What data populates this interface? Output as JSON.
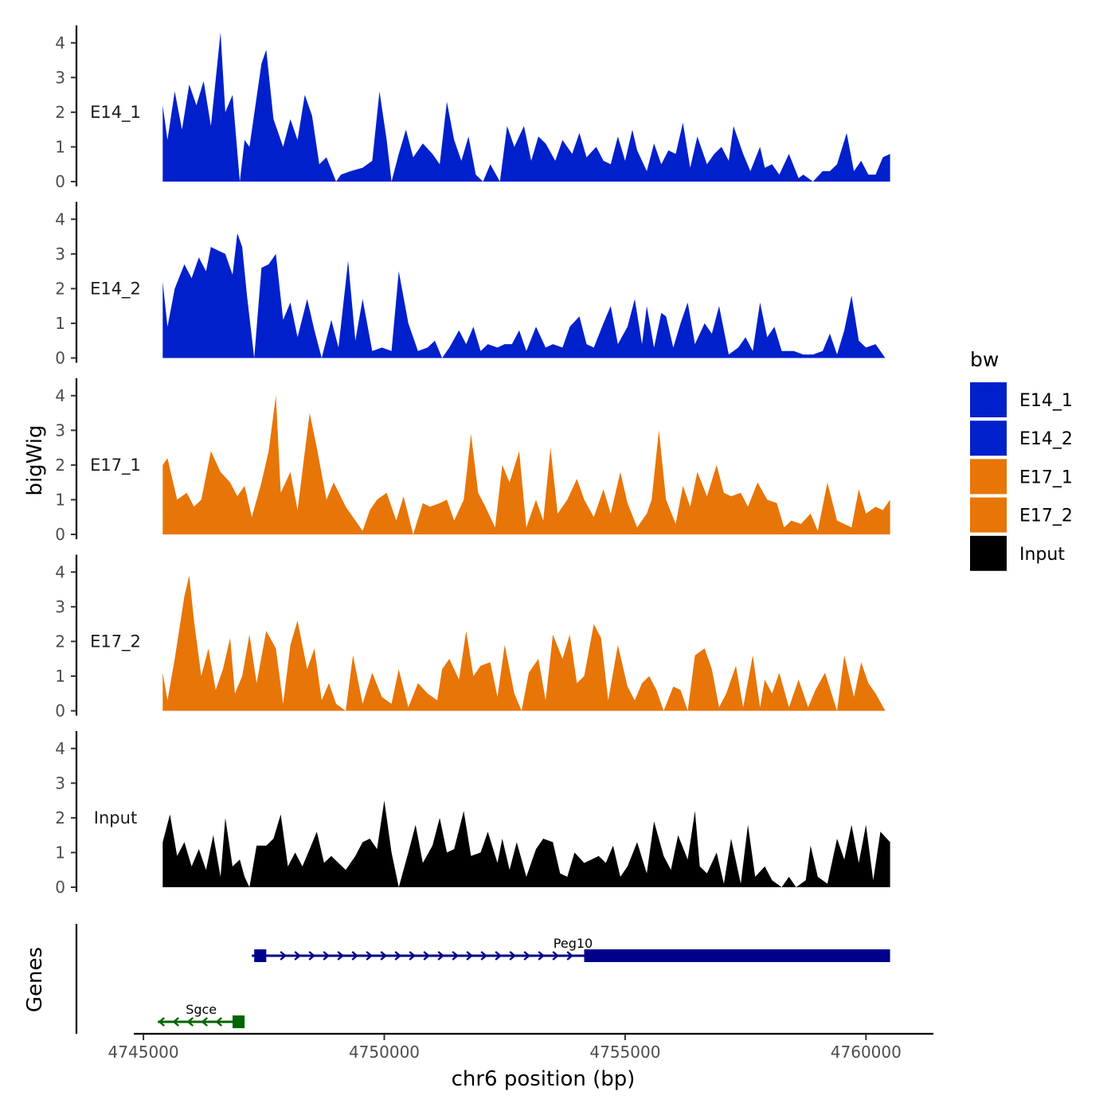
{
  "chart_data": {
    "type": "area",
    "chromosome": "chr6",
    "xlabel": "chr6 position (bp)",
    "ylabel_tracks": "bigWig",
    "ylabel_genes": "Genes",
    "xlim": [
      4744800,
      4761400
    ],
    "x_ticks": [
      4745000,
      4750000,
      4755000,
      4760000
    ],
    "x_tick_labels": [
      "4745000",
      "4750000",
      "4755000",
      "4760000"
    ],
    "ylim": [
      0,
      4.5
    ],
    "y_ticks": [
      0,
      1,
      2,
      3,
      4
    ],
    "y_tick_labels": [
      "0",
      "1",
      "2",
      "3",
      "4"
    ],
    "legend": {
      "title": "bw",
      "position": "right",
      "entries": [
        {
          "label": "E14_1",
          "color": "#0020CC"
        },
        {
          "label": "E14_2",
          "color": "#0020CC"
        },
        {
          "label": "E17_1",
          "color": "#E87507"
        },
        {
          "label": "E17_2",
          "color": "#E87507"
        },
        {
          "label": "Input",
          "color": "#000000"
        }
      ]
    },
    "series": [
      {
        "name": "E14_1",
        "color": "#0020CC",
        "x": [
          4745400,
          4745500,
          4745650,
          4745800,
          4745950,
          4746100,
          4746250,
          4746400,
          4746600,
          4746700,
          4746850,
          4747000,
          4747100,
          4747200,
          4747450,
          4747550,
          4747700,
          4747900,
          4748050,
          4748200,
          4748350,
          4748500,
          4748650,
          4748800,
          4749000,
          4749100,
          4749300,
          4749550,
          4749750,
          4749900,
          4750050,
          4750150,
          4750300,
          4750450,
          4750600,
          4750800,
          4751000,
          4751150,
          4751300,
          4751450,
          4751600,
          4751750,
          4751900,
          4752050,
          4752200,
          4752400,
          4752550,
          4752700,
          4752900,
          4753050,
          4753200,
          4753350,
          4753550,
          4753700,
          4753900,
          4754050,
          4754200,
          4754400,
          4754550,
          4754700,
          4754850,
          4755000,
          4755150,
          4755250,
          4755450,
          4755600,
          4755750,
          4755900,
          4756050,
          4756200,
          4756350,
          4756500,
          4756700,
          4756850,
          4757000,
          4757150,
          4757250,
          4757450,
          4757600,
          4757800,
          4757900,
          4758050,
          4758200,
          4758400,
          4758600,
          4758700,
          4758900,
          4759100,
          4759250,
          4759400,
          4759600,
          4759750,
          4759900,
          4760050,
          4760200,
          4760350,
          4760500
        ],
        "values": [
          2.2,
          1.2,
          2.6,
          1.5,
          2.8,
          2.2,
          2.9,
          1.6,
          4.3,
          2.0,
          2.5,
          0.0,
          1.2,
          1.0,
          3.4,
          3.8,
          1.8,
          1.0,
          1.8,
          1.2,
          2.5,
          1.9,
          0.5,
          0.7,
          0.0,
          0.2,
          0.3,
          0.4,
          0.6,
          2.6,
          1.2,
          0.0,
          0.8,
          1.5,
          0.7,
          1.1,
          0.8,
          0.5,
          2.3,
          1.2,
          0.6,
          1.3,
          0.2,
          0.0,
          0.5,
          0.0,
          1.6,
          1.0,
          1.6,
          0.6,
          1.3,
          1.1,
          0.6,
          1.2,
          0.8,
          1.4,
          0.7,
          1.0,
          0.6,
          0.5,
          1.3,
          0.6,
          1.5,
          0.9,
          0.3,
          1.1,
          0.5,
          0.9,
          0.8,
          1.7,
          0.4,
          1.3,
          0.5,
          0.8,
          1.0,
          0.6,
          1.6,
          0.8,
          0.3,
          1.0,
          0.4,
          0.5,
          0.2,
          0.8,
          0.1,
          0.2,
          0.0,
          0.3,
          0.3,
          0.5,
          1.4,
          0.3,
          0.6,
          0.2,
          0.2,
          0.7,
          0.8
        ]
      },
      {
        "name": "E14_2",
        "color": "#0020CC",
        "x": [
          4745400,
          4745500,
          4745650,
          4745850,
          4746000,
          4746150,
          4746300,
          4746400,
          4746550,
          4746700,
          4746850,
          4746950,
          4747050,
          4747150,
          4747300,
          4747450,
          4747600,
          4747750,
          4747900,
          4748050,
          4748200,
          4748400,
          4748550,
          4748700,
          4748900,
          4749050,
          4749250,
          4749400,
          4749550,
          4749750,
          4749950,
          4750150,
          4750300,
          4750500,
          4750700,
          4750900,
          4751050,
          4751200,
          4751350,
          4751550,
          4751700,
          4751850,
          4752000,
          4752150,
          4752350,
          4752500,
          4752650,
          4752800,
          4752950,
          4753150,
          4753350,
          4753500,
          4753700,
          4753850,
          4754050,
          4754200,
          4754350,
          4754550,
          4754700,
          4754850,
          4755050,
          4755200,
          4755350,
          4755450,
          4755600,
          4755750,
          4755850,
          4756000,
          4756150,
          4756300,
          4756450,
          4756650,
          4756800,
          4756950,
          4757150,
          4757350,
          4757500,
          4757650,
          4757800,
          4757950,
          4758100,
          4758250,
          4758500,
          4758700,
          4758900,
          4759100,
          4759250,
          4759400,
          4759550,
          4759700,
          4759850,
          4760000,
          4760200,
          4760400
        ],
        "values": [
          2.2,
          0.9,
          2.0,
          2.7,
          2.3,
          2.9,
          2.5,
          3.2,
          3.1,
          3.0,
          2.4,
          3.6,
          3.2,
          1.8,
          0.0,
          2.6,
          2.7,
          3.0,
          1.1,
          1.6,
          0.6,
          1.7,
          0.8,
          0.0,
          1.1,
          0.3,
          2.8,
          0.5,
          1.7,
          0.2,
          0.3,
          0.2,
          2.5,
          1.0,
          0.2,
          0.3,
          0.5,
          0.0,
          0.3,
          0.8,
          0.4,
          0.9,
          0.2,
          0.4,
          0.3,
          0.4,
          0.4,
          0.8,
          0.2,
          0.9,
          0.3,
          0.4,
          0.3,
          0.9,
          1.2,
          0.4,
          0.3,
          1.0,
          1.5,
          0.4,
          0.9,
          1.7,
          0.4,
          1.5,
          0.3,
          1.3,
          1.2,
          0.3,
          1.0,
          1.6,
          0.4,
          1.0,
          0.7,
          1.5,
          0.1,
          0.3,
          0.6,
          0.2,
          1.6,
          0.6,
          0.9,
          0.2,
          0.2,
          0.1,
          0.1,
          0.2,
          0.7,
          0.1,
          0.8,
          1.8,
          0.5,
          0.3,
          0.4,
          0.0
        ]
      },
      {
        "name": "E17_1",
        "color": "#E87507",
        "x": [
          4745400,
          4745500,
          4745700,
          4745900,
          4746050,
          4746200,
          4746400,
          4746600,
          4746800,
          4746950,
          4747100,
          4747250,
          4747450,
          4747600,
          4747750,
          4747850,
          4748050,
          4748200,
          4748450,
          4748600,
          4748800,
          4748950,
          4749200,
          4749350,
          4749550,
          4749700,
          4749850,
          4750050,
          4750250,
          4750400,
          4750600,
          4750800,
          4750950,
          4751150,
          4751300,
          4751450,
          4751650,
          4751800,
          4751950,
          4752100,
          4752300,
          4752450,
          4752600,
          4752800,
          4752950,
          4753150,
          4753300,
          4753450,
          4753600,
          4753800,
          4754000,
          4754150,
          4754350,
          4754550,
          4754700,
          4754900,
          4755050,
          4755250,
          4755450,
          4755550,
          4755700,
          4755850,
          4756050,
          4756200,
          4756350,
          4756500,
          4756700,
          4756900,
          4757050,
          4757200,
          4757400,
          4757550,
          4757750,
          4757950,
          4758150,
          4758300,
          4758450,
          4758650,
          4758850,
          4759000,
          4759200,
          4759400,
          4759550,
          4759700,
          4759850,
          4760000,
          4760200,
          4760350,
          4760500
        ],
        "values": [
          2.0,
          2.2,
          1.0,
          1.2,
          0.8,
          1.0,
          2.4,
          1.8,
          1.5,
          1.1,
          1.4,
          0.5,
          1.5,
          2.4,
          4.0,
          1.2,
          1.8,
          0.7,
          3.5,
          2.5,
          1.0,
          1.5,
          0.8,
          0.5,
          0.1,
          0.7,
          1.0,
          1.2,
          0.4,
          1.1,
          0.0,
          0.9,
          0.8,
          0.9,
          1.0,
          0.4,
          1.0,
          2.9,
          1.2,
          0.8,
          0.2,
          2.0,
          1.5,
          2.4,
          0.2,
          1.0,
          0.4,
          2.5,
          0.6,
          1.0,
          1.6,
          1.0,
          0.5,
          1.3,
          0.6,
          1.8,
          0.9,
          0.2,
          0.6,
          1.0,
          3.0,
          1.0,
          0.3,
          1.4,
          0.8,
          1.8,
          1.1,
          2.0,
          1.2,
          1.1,
          1.2,
          0.8,
          1.5,
          1.0,
          0.9,
          0.2,
          0.4,
          0.3,
          0.6,
          0.1,
          1.5,
          0.4,
          0.3,
          0.2,
          1.3,
          0.6,
          0.8,
          0.7,
          1.0
        ]
      },
      {
        "name": "E17_2",
        "color": "#E87507",
        "x": [
          4745400,
          4745500,
          4745650,
          4745850,
          4745950,
          4746050,
          4746200,
          4746350,
          4746500,
          4746650,
          4746800,
          4746900,
          4747050,
          4747200,
          4747350,
          4747550,
          4747750,
          4747900,
          4748050,
          4748200,
          4748400,
          4748550,
          4748700,
          4748850,
          4749000,
          4749200,
          4749350,
          4749550,
          4749750,
          4749950,
          4750150,
          4750300,
          4750500,
          4750700,
          4750900,
          4751100,
          4751200,
          4751350,
          4751550,
          4751700,
          4751850,
          4752000,
          4752200,
          4752350,
          4752500,
          4752700,
          4752850,
          4753000,
          4753200,
          4753350,
          4753500,
          4753700,
          4753850,
          4754000,
          4754150,
          4754350,
          4754500,
          4754650,
          4754850,
          4755050,
          4755200,
          4755350,
          4755500,
          4755650,
          4755800,
          4756000,
          4756150,
          4756300,
          4756450,
          4756650,
          4756800,
          4756950,
          4757100,
          4757300,
          4757450,
          4757650,
          4757800,
          4757900,
          4758050,
          4758200,
          4758400,
          4758600,
          4758800,
          4758950,
          4759150,
          4759400,
          4759550,
          4759750,
          4759900,
          4760050,
          4760200,
          4760400
        ],
        "values": [
          1.1,
          0.3,
          1.5,
          3.3,
          3.9,
          2.6,
          1.0,
          1.8,
          0.6,
          1.2,
          2.1,
          0.5,
          1.0,
          2.2,
          0.8,
          2.3,
          1.8,
          0.2,
          1.9,
          2.6,
          1.2,
          1.8,
          0.3,
          0.8,
          0.2,
          0.0,
          1.6,
          0.2,
          1.1,
          0.4,
          0.2,
          1.2,
          0.1,
          0.8,
          0.5,
          0.3,
          1.2,
          1.5,
          0.9,
          2.3,
          1.0,
          1.3,
          1.4,
          0.4,
          1.9,
          0.5,
          0.0,
          1.1,
          1.5,
          0.3,
          2.2,
          1.5,
          2.2,
          0.8,
          1.0,
          2.5,
          2.1,
          0.3,
          1.9,
          0.7,
          0.3,
          0.8,
          1.0,
          0.6,
          0.0,
          0.7,
          0.6,
          0.0,
          1.6,
          1.8,
          1.2,
          0.1,
          0.5,
          1.3,
          0.1,
          1.6,
          0.1,
          0.9,
          0.5,
          1.1,
          0.1,
          0.9,
          0.1,
          0.6,
          1.1,
          0.0,
          1.6,
          0.4,
          1.4,
          0.8,
          0.5,
          0.0
        ]
      },
      {
        "name": "Input",
        "color": "#000000",
        "x": [
          4745400,
          4745550,
          4745700,
          4745850,
          4746000,
          4746150,
          4746300,
          4746450,
          4746600,
          4746700,
          4746850,
          4747000,
          4747100,
          4747200,
          4747350,
          4747550,
          4747700,
          4747850,
          4748000,
          4748150,
          4748300,
          4748450,
          4748600,
          4748750,
          4748900,
          4749050,
          4749200,
          4749400,
          4749550,
          4749700,
          4749850,
          4750000,
          4750150,
          4750300,
          4750500,
          4750650,
          4750800,
          4751000,
          4751150,
          4751300,
          4751450,
          4751650,
          4751800,
          4752000,
          4752150,
          4752350,
          4752450,
          4752600,
          4752750,
          4752950,
          4753150,
          4753300,
          4753500,
          4753650,
          4753800,
          4753950,
          4754150,
          4754300,
          4754450,
          4754600,
          4754750,
          4754900,
          4755050,
          4755250,
          4755450,
          4755600,
          4755800,
          4755950,
          4756100,
          4756300,
          4756450,
          4756550,
          4756700,
          4756900,
          4757050,
          4757200,
          4757400,
          4757550,
          4757700,
          4757900,
          4758050,
          4758250,
          4758400,
          4758550,
          4758750,
          4758850,
          4759000,
          4759200,
          4759400,
          4759550,
          4759700,
          4759850,
          4760000,
          4760150,
          4760300,
          4760500
        ],
        "values": [
          1.3,
          2.1,
          0.9,
          1.3,
          0.6,
          1.1,
          0.5,
          1.5,
          0.3,
          2.0,
          0.6,
          0.8,
          0.3,
          0.0,
          1.2,
          1.2,
          1.4,
          2.1,
          0.6,
          1.0,
          0.6,
          1.1,
          1.6,
          0.7,
          0.9,
          0.7,
          0.5,
          0.9,
          1.3,
          1.4,
          1.1,
          2.5,
          1.0,
          0.0,
          1.0,
          1.8,
          0.7,
          1.2,
          2.0,
          1.0,
          1.1,
          2.2,
          0.9,
          1.0,
          1.6,
          0.7,
          1.4,
          0.5,
          1.3,
          0.3,
          1.1,
          1.4,
          1.3,
          0.4,
          0.3,
          1.0,
          0.7,
          0.8,
          0.9,
          0.7,
          1.2,
          0.3,
          0.6,
          1.3,
          0.4,
          1.9,
          0.9,
          0.5,
          1.5,
          0.8,
          2.2,
          0.6,
          0.4,
          1.0,
          0.1,
          1.4,
          0.1,
          1.8,
          0.3,
          0.6,
          0.2,
          0.0,
          0.3,
          0.0,
          0.2,
          1.2,
          0.3,
          0.1,
          1.4,
          0.8,
          1.8,
          0.7,
          1.8,
          0.2,
          1.6,
          1.3
        ]
      }
    ],
    "genes": [
      {
        "name": "Peg10",
        "strand": "+",
        "start": 4747250,
        "end": 4760500,
        "color": "#00008B",
        "row": 1,
        "exons": [
          [
            4747300,
            4747550
          ],
          [
            4754150,
            4760500
          ]
        ]
      },
      {
        "name": "Sgce",
        "strand": "-",
        "start": 4745300,
        "end": 4747100,
        "color": "#006400",
        "row": 2,
        "exons": [
          [
            4746850,
            4747100
          ]
        ]
      }
    ]
  }
}
